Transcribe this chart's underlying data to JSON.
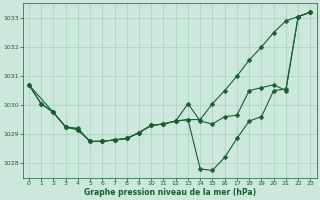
{
  "line1_x": [
    0,
    1,
    2,
    3,
    4,
    5,
    6,
    7,
    8,
    9,
    10,
    11,
    12,
    13,
    14,
    15,
    16,
    17,
    18,
    19,
    20,
    21,
    22,
    23
  ],
  "line1_y": [
    1030.7,
    1030.05,
    1029.75,
    1029.25,
    1029.15,
    1028.75,
    1028.75,
    1028.8,
    1028.85,
    1029.05,
    1029.3,
    1029.35,
    1029.45,
    1029.5,
    1029.5,
    1030.05,
    1030.5,
    1031.0,
    1031.55,
    1032.0,
    1032.5,
    1032.9,
    1033.05,
    1033.2
  ],
  "line2_x": [
    0,
    2,
    3,
    4,
    5,
    6,
    7,
    8,
    9,
    10,
    11,
    12,
    13,
    14,
    15,
    16,
    17,
    18,
    19,
    20,
    21,
    22,
    23
  ],
  "line2_y": [
    1030.7,
    1029.75,
    1029.25,
    1029.2,
    1028.75,
    1028.75,
    1028.8,
    1028.85,
    1029.05,
    1029.3,
    1029.35,
    1029.45,
    1030.05,
    1029.45,
    1029.35,
    1029.6,
    1029.65,
    1030.5,
    1030.6,
    1030.7,
    1030.5,
    1033.05,
    1033.2
  ],
  "line3_x": [
    0,
    1,
    2,
    3,
    4,
    5,
    6,
    7,
    8,
    9,
    10,
    11,
    12,
    13,
    14,
    15,
    16,
    17,
    18,
    19,
    20,
    21,
    22,
    23
  ],
  "line3_y": [
    1030.7,
    1030.05,
    1029.75,
    1029.25,
    1029.15,
    1028.75,
    1028.75,
    1028.8,
    1028.85,
    1029.05,
    1029.3,
    1029.35,
    1029.45,
    1029.5,
    1027.8,
    1027.75,
    1028.2,
    1028.85,
    1029.45,
    1029.6,
    1030.5,
    1030.55,
    1033.05,
    1033.2
  ],
  "bg_color": "#cce8dc",
  "grid_color": "#aacfbe",
  "line_color": "#1a5e30",
  "xlabel": "Graphe pression niveau de la mer (hPa)",
  "xlabel_color": "#1a5e30",
  "tick_color": "#1a5e30",
  "ylim": [
    1027.5,
    1033.5
  ],
  "xlim": [
    -0.5,
    23.5
  ],
  "yticks": [
    1028,
    1029,
    1030,
    1031,
    1032,
    1033
  ],
  "xticks": [
    0,
    1,
    2,
    3,
    4,
    5,
    6,
    7,
    8,
    9,
    10,
    11,
    12,
    13,
    14,
    15,
    16,
    17,
    18,
    19,
    20,
    21,
    22,
    23
  ]
}
